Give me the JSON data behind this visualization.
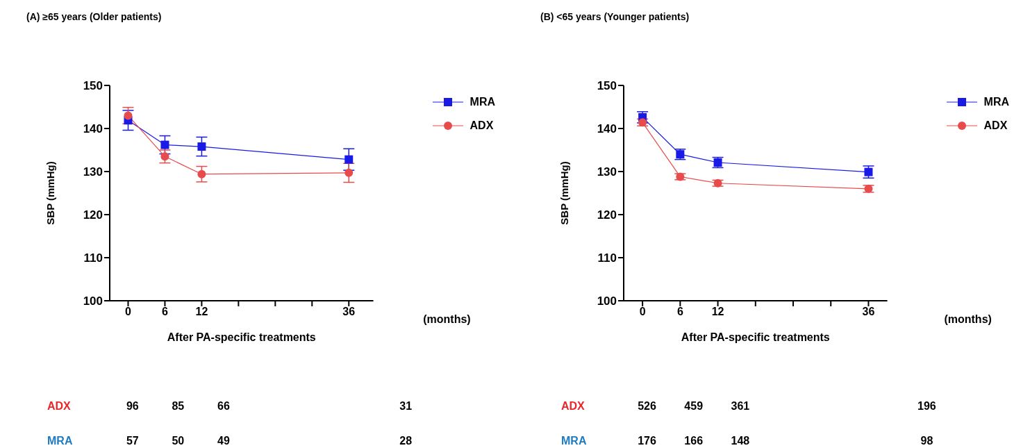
{
  "chart_data": [
    {
      "type": "line",
      "title": "(A) ≥65 years (Older patients)",
      "xlabel": "After PA-specific treatments",
      "ylabel": "SBP (mmHg)",
      "x": [
        0,
        6,
        12,
        36
      ],
      "series": [
        {
          "name": "MRA",
          "color": "#1a1ae6",
          "marker": "square",
          "values": [
            141.9,
            136.2,
            135.8,
            132.8
          ],
          "errors": [
            2.3,
            2.1,
            2.2,
            2.5
          ]
        },
        {
          "name": "ADX",
          "color": "#e84b4b",
          "marker": "circle",
          "values": [
            143.0,
            133.5,
            129.4,
            129.7
          ],
          "errors": [
            1.9,
            1.5,
            1.8,
            2.2
          ]
        }
      ],
      "xlim": [
        -3,
        40
      ],
      "xticks": [
        0,
        6,
        12,
        {
          "value": 18,
          "label": null
        },
        {
          "value": 24,
          "label": null
        },
        {
          "value": 30,
          "label": null
        },
        36
      ],
      "ylim": [
        100,
        150
      ],
      "yticks": [
        100,
        110,
        120,
        130,
        140,
        150
      ],
      "grid": false,
      "legend": "top right",
      "line_style": "solid",
      "annotations": [
        "(months)",
        "ADX",
        "96",
        "85",
        "66",
        "31",
        "MRA",
        "57",
        "50",
        "49",
        "28"
      ]
    },
    {
      "type": "line",
      "title": "(B) <65 years (Younger patients)",
      "xlabel": "After PA-specific treatments",
      "ylabel": "SBP (mmHg)",
      "x": [
        0,
        6,
        12,
        36
      ],
      "series": [
        {
          "name": "MRA",
          "color": "#1a1ae6",
          "marker": "square",
          "values": [
            142.6,
            134.0,
            132.1,
            129.9
          ],
          "errors": [
            1.3,
            1.2,
            1.2,
            1.4
          ]
        },
        {
          "name": "ADX",
          "color": "#e84b4b",
          "marker": "circle",
          "values": [
            141.4,
            128.8,
            127.3,
            126.0
          ],
          "errors": [
            0.8,
            0.7,
            0.7,
            0.8
          ]
        }
      ],
      "xlim": [
        -3,
        39
      ],
      "xticks": [
        0,
        6,
        12,
        {
          "value": 18,
          "label": null
        },
        {
          "value": 24,
          "label": null
        },
        {
          "value": 30,
          "label": null
        },
        36
      ],
      "ylim": [
        100,
        150
      ],
      "yticks": [
        100,
        110,
        120,
        130,
        140,
        150
      ],
      "grid": false,
      "legend": "top right",
      "line_style": "solid",
      "annotations": [
        "(months)",
        "ADX",
        "526",
        "459",
        "361",
        "196",
        "MRA",
        "176",
        "166",
        "148",
        "98"
      ]
    }
  ]
}
